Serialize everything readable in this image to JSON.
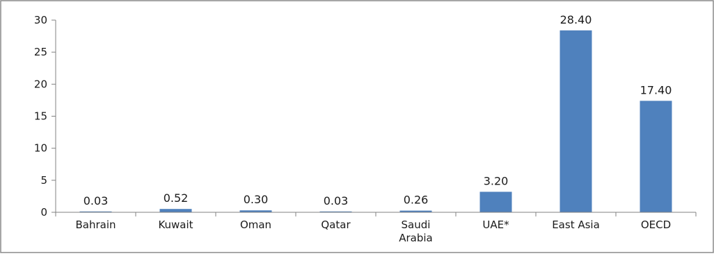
{
  "chart_data": {
    "type": "bar",
    "title": "",
    "xlabel": "",
    "ylabel": "",
    "ylim": [
      0,
      30
    ],
    "yticks": [
      0,
      5,
      10,
      15,
      20,
      25,
      30
    ],
    "grid": false,
    "legend": "none",
    "bar_color": "#4F81BD",
    "categories": [
      [
        "Bahrain"
      ],
      [
        "Kuwait"
      ],
      [
        "Oman"
      ],
      [
        "Qatar"
      ],
      [
        "Saudi",
        "Arabia"
      ],
      [
        "UAE*"
      ],
      [
        "East Asia"
      ],
      [
        "OECD"
      ]
    ],
    "values": [
      0.03,
      0.52,
      0.3,
      0.03,
      0.26,
      3.2,
      28.4,
      17.4
    ],
    "value_labels": [
      "0.03",
      "0.52",
      "0.30",
      "0.03",
      "0.26",
      "3.20",
      "28.40",
      "17.40"
    ]
  }
}
